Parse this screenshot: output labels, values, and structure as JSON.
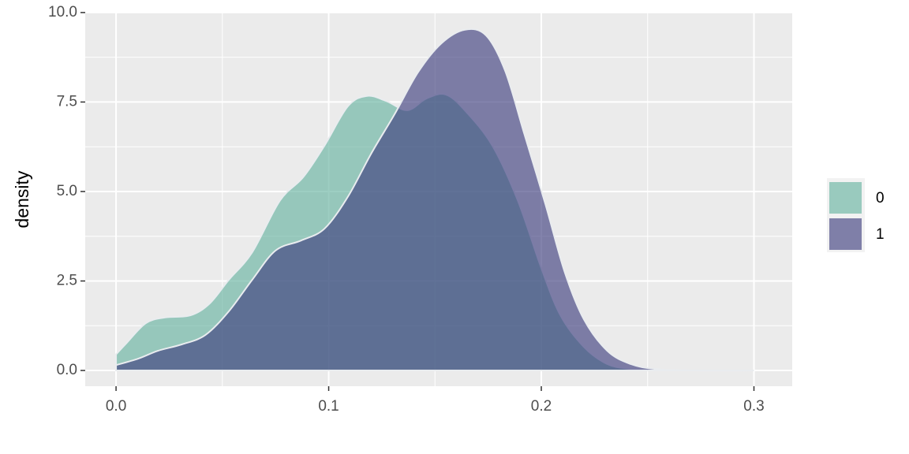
{
  "chart_data": {
    "type": "density",
    "y_label": "density",
    "xlim": [
      -0.0145,
      0.318
    ],
    "ylim": [
      -0.44,
      10.02
    ],
    "xticks": [
      {
        "value": 0,
        "label": "0.0"
      },
      0.1,
      0.2,
      0.3
    ],
    "yticks": [
      {
        "value": 0,
        "label": "0.0"
      },
      2.5,
      {
        "value": 5,
        "label": "5.0"
      },
      7.5,
      {
        "value": 10,
        "label": "10.0"
      }
    ],
    "grid": true,
    "legend": "right",
    "series": [
      {
        "name": "0",
        "color": "#69b3a2",
        "x": [
          0.0,
          0.005,
          0.014,
          0.023,
          0.035,
          0.044,
          0.053,
          0.064,
          0.077,
          0.088,
          0.098,
          0.109,
          0.118,
          0.127,
          0.137,
          0.146,
          0.155,
          0.164,
          0.177,
          0.189,
          0.2,
          0.209,
          0.22,
          0.231,
          0.242,
          0.254
        ],
        "values": [
          0.45,
          0.77,
          1.32,
          1.48,
          1.54,
          1.87,
          2.53,
          3.3,
          4.74,
          5.4,
          6.28,
          7.38,
          7.67,
          7.53,
          7.27,
          7.6,
          7.71,
          7.27,
          6.28,
          4.74,
          2.86,
          1.54,
          0.66,
          0.18,
          0.04,
          0.0
        ]
      },
      {
        "name": "1",
        "color": "#404080",
        "x": [
          0.0,
          0.0104,
          0.0197,
          0.031,
          0.042,
          0.053,
          0.064,
          0.075,
          0.087,
          0.098,
          0.109,
          0.12,
          0.131,
          0.142,
          0.153,
          0.164,
          0.174,
          0.183,
          0.192,
          0.202,
          0.211,
          0.22,
          0.231,
          0.242,
          0.254,
          0.272,
          0.3
        ],
        "values": [
          0.15,
          0.33,
          0.55,
          0.73,
          0.99,
          1.65,
          2.53,
          3.35,
          3.63,
          3.96,
          4.85,
          6.06,
          7.16,
          8.33,
          9.14,
          9.52,
          9.36,
          8.37,
          6.61,
          4.63,
          2.75,
          1.43,
          0.55,
          0.18,
          0.04,
          0.0,
          0.0
        ]
      }
    ]
  }
}
